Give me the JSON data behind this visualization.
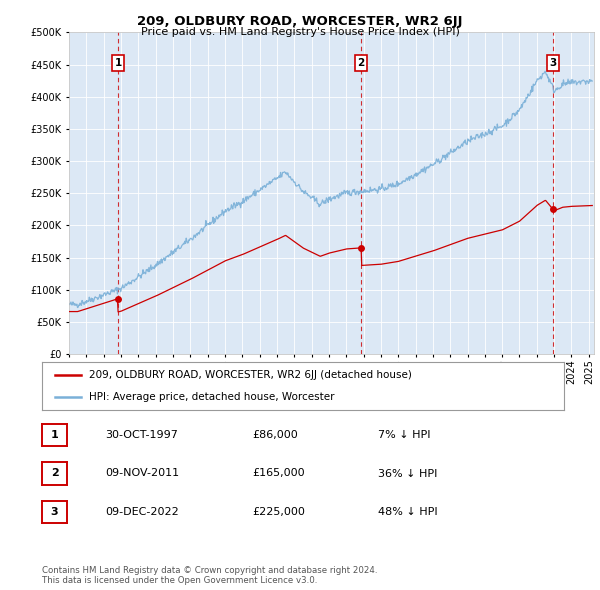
{
  "title": "209, OLDBURY ROAD, WORCESTER, WR2 6JJ",
  "subtitle": "Price paid vs. HM Land Registry's House Price Index (HPI)",
  "hpi_color": "#7ab0d8",
  "price_color": "#cc0000",
  "plot_bg_color": "#dce8f5",
  "ylim": [
    0,
    500000
  ],
  "yticks": [
    0,
    50000,
    100000,
    150000,
    200000,
    250000,
    300000,
    350000,
    400000,
    450000,
    500000
  ],
  "transactions": [
    {
      "date": 1997.83,
      "price": 86000,
      "label": "1"
    },
    {
      "date": 2011.86,
      "price": 165000,
      "label": "2"
    },
    {
      "date": 2022.94,
      "price": 225000,
      "label": "3"
    }
  ],
  "legend_entries": [
    {
      "label": "209, OLDBURY ROAD, WORCESTER, WR2 6JJ (detached house)",
      "color": "#cc0000"
    },
    {
      "label": "HPI: Average price, detached house, Worcester",
      "color": "#7ab0d8"
    }
  ],
  "table_rows": [
    {
      "num": "1",
      "date": "30-OCT-1997",
      "price": "£86,000",
      "note": "7% ↓ HPI"
    },
    {
      "num": "2",
      "date": "09-NOV-2011",
      "price": "£165,000",
      "note": "36% ↓ HPI"
    },
    {
      "num": "3",
      "date": "09-DEC-2022",
      "price": "£225,000",
      "note": "48% ↓ HPI"
    }
  ],
  "footer": "Contains HM Land Registry data © Crown copyright and database right 2024.\nThis data is licensed under the Open Government Licence v3.0.",
  "xmin": 1995.0,
  "xmax": 2025.3
}
